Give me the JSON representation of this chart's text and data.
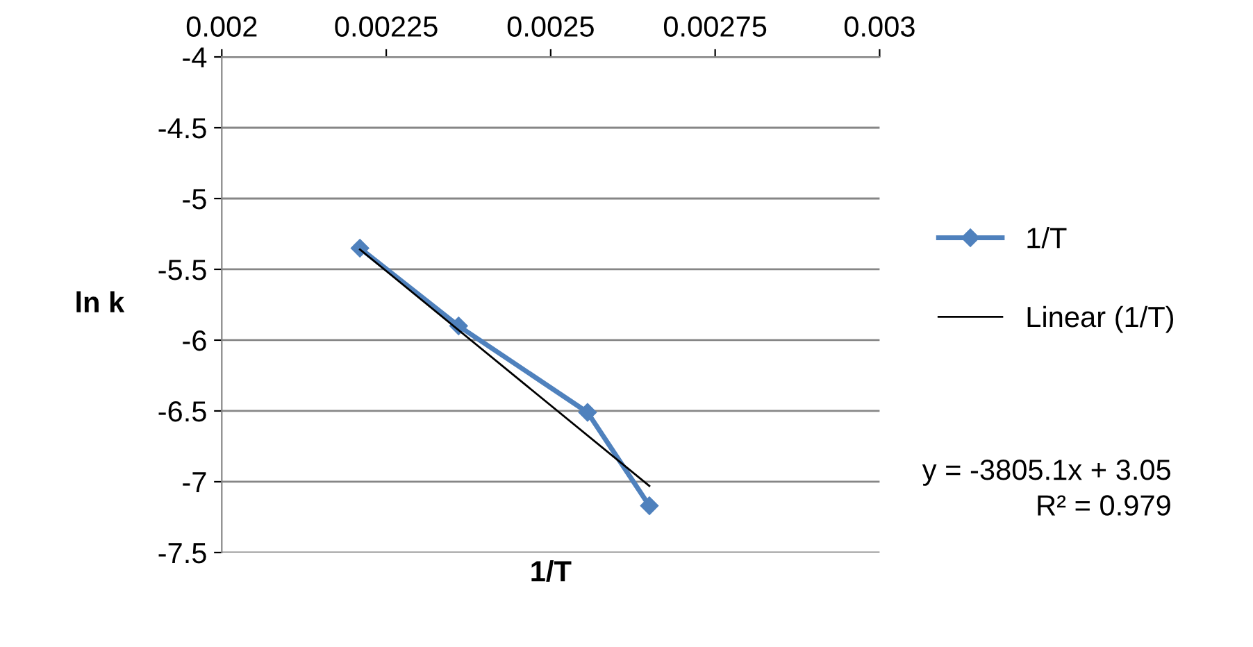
{
  "chart_data": {
    "type": "line",
    "xlabel": "1/T",
    "ylabel": "ln k",
    "xlim": [
      0.002,
      0.003
    ],
    "xticks": [
      0.002,
      0.00225,
      0.0025,
      0.00275,
      0.003
    ],
    "ylim": [
      -7.5,
      -4
    ],
    "yticks": [
      -7.5,
      -7,
      -6.5,
      -6,
      -5.5,
      -5,
      -4.5,
      -4
    ],
    "grid": "y",
    "legend": "right",
    "marker": "diamond",
    "series": [
      {
        "name": "1/T",
        "color": "#4f81bd",
        "x": [
          0.00221,
          0.00236,
          0.002556,
          0.00265
        ],
        "values": [
          -5.35,
          -5.9,
          -6.51,
          -7.17
        ]
      },
      {
        "name": "Linear (1/T)",
        "type": "line",
        "marker": "none",
        "color": "#000000",
        "x": [
          0.00221,
          0.00265
        ],
        "values": [
          -5.36,
          -7.03
        ]
      }
    ],
    "annotations": [
      "y = -3805.1x + 3.05",
      "R² = 0.979"
    ]
  }
}
